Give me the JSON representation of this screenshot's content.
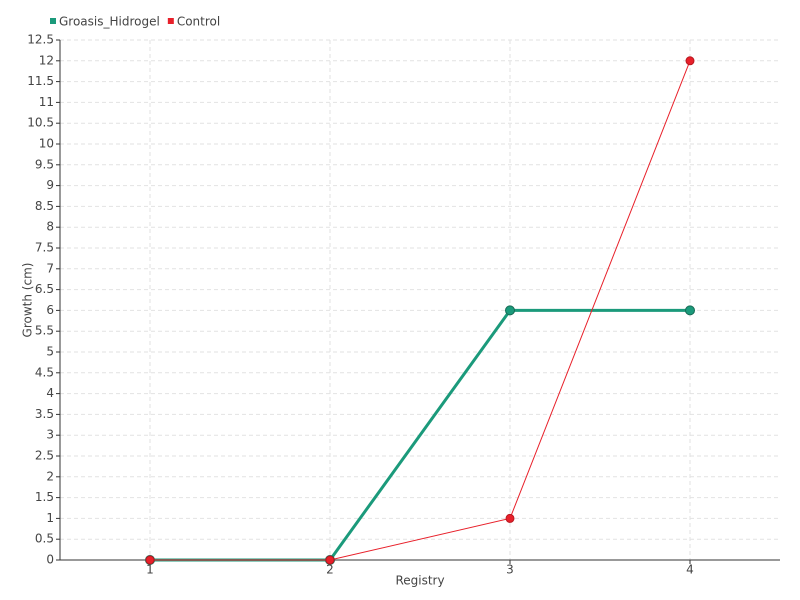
{
  "chart_data": {
    "type": "line",
    "x_label": "Registry",
    "y_label": "Growth (cm)",
    "categories": [
      "1",
      "2",
      "3",
      "4"
    ],
    "series": [
      {
        "name": "Groasis_Hidrogel",
        "color": "#1b9a7b",
        "values": [
          0,
          0,
          6,
          6
        ]
      },
      {
        "name": "Control",
        "color": "#e8202a",
        "values": [
          0,
          0,
          1,
          12
        ]
      }
    ],
    "ylim": [
      0,
      12.5
    ],
    "yticks": [
      0,
      0.5,
      1,
      1.5,
      2,
      2.5,
      3,
      3.5,
      4,
      4.5,
      5,
      5.5,
      6,
      6.5,
      7,
      7.5,
      8,
      8.5,
      9,
      9.5,
      10,
      10.5,
      11,
      11.5,
      12,
      12.5
    ],
    "grid": true
  }
}
